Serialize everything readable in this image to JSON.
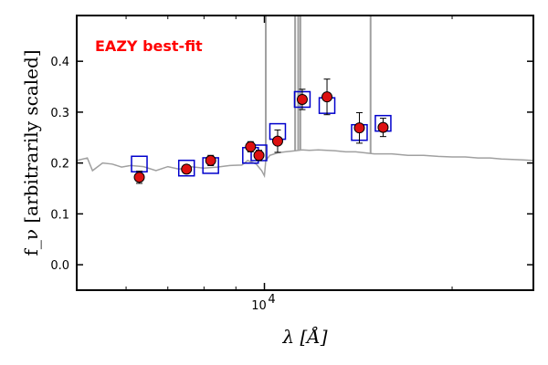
{
  "chart_data": {
    "type": "scatter",
    "annotation": "EAZY best-fit",
    "annotation_color": "#ff0000",
    "xlabel": "λ [Å]",
    "ylabel": "f_ν [arbitrarily scaled]",
    "x_scale": "log",
    "xlim": [
      5000,
      27000
    ],
    "ylim": [
      -0.05,
      0.49
    ],
    "ytick_labels": [
      "0.0",
      "0.1",
      "0.2",
      "0.3",
      "0.4"
    ],
    "xtick_labels": [
      {
        "base": "10",
        "exponent": "4",
        "value": 10000
      }
    ],
    "colors": {
      "observed_face": "#dd1111",
      "observed_edge": "#000000",
      "model_box": "#0000cc",
      "template": "#a0a0a0"
    },
    "series": [
      {
        "marker": "circle",
        "x": [
          6300,
          7500,
          8200,
          9500,
          9800,
          10500,
          11500,
          12600,
          14200,
          15500
        ],
        "y": [
          0.172,
          0.188,
          0.205,
          0.232,
          0.215,
          0.243,
          0.325,
          0.33,
          0.269,
          0.27
        ],
        "yerr": [
          0.012,
          0.008,
          0.01,
          0.01,
          0.01,
          0.022,
          0.02,
          0.035,
          0.03,
          0.018
        ]
      },
      {
        "marker": "square",
        "x": [
          6300,
          7500,
          8200,
          9500,
          9800,
          10500,
          11500,
          12600,
          14200,
          15500
        ],
        "y": [
          0.198,
          0.19,
          0.195,
          0.215,
          0.22,
          0.262,
          0.325,
          0.313,
          0.26,
          0.278
        ]
      },
      {
        "marker": "line",
        "x": [
          5000,
          5200,
          5300,
          5500,
          5700,
          5900,
          6100,
          6400,
          6700,
          7000,
          7300,
          7600,
          8000,
          8400,
          8800,
          9200,
          9400,
          9700,
          9900,
          10000,
          10050,
          10200,
          10500,
          10800,
          11200,
          11500,
          11800,
          12200,
          12600,
          13000,
          13500,
          14000,
          14500,
          15000,
          16000,
          17000,
          18000,
          19000,
          20000,
          21000,
          22000,
          23000,
          24000,
          25000,
          26000,
          27000
        ],
        "y": [
          0.205,
          0.21,
          0.185,
          0.2,
          0.198,
          0.192,
          0.195,
          0.193,
          0.185,
          0.193,
          0.188,
          0.193,
          0.19,
          0.192,
          0.195,
          0.196,
          0.205,
          0.198,
          0.185,
          0.175,
          0.205,
          0.215,
          0.22,
          0.222,
          0.224,
          0.226,
          0.225,
          0.226,
          0.225,
          0.224,
          0.222,
          0.222,
          0.22,
          0.218,
          0.218,
          0.215,
          0.215,
          0.213,
          0.212,
          0.212,
          0.21,
          0.21,
          0.208,
          0.207,
          0.206,
          0.205
        ],
        "emission_lines": [
          {
            "x": 10050,
            "y": 0.49
          },
          {
            "x": 11200,
            "y": 0.49
          },
          {
            "x": 11330,
            "y": 0.49
          },
          {
            "x": 11420,
            "y": 0.49
          },
          {
            "x": 14800,
            "y": 0.49
          }
        ]
      }
    ]
  }
}
